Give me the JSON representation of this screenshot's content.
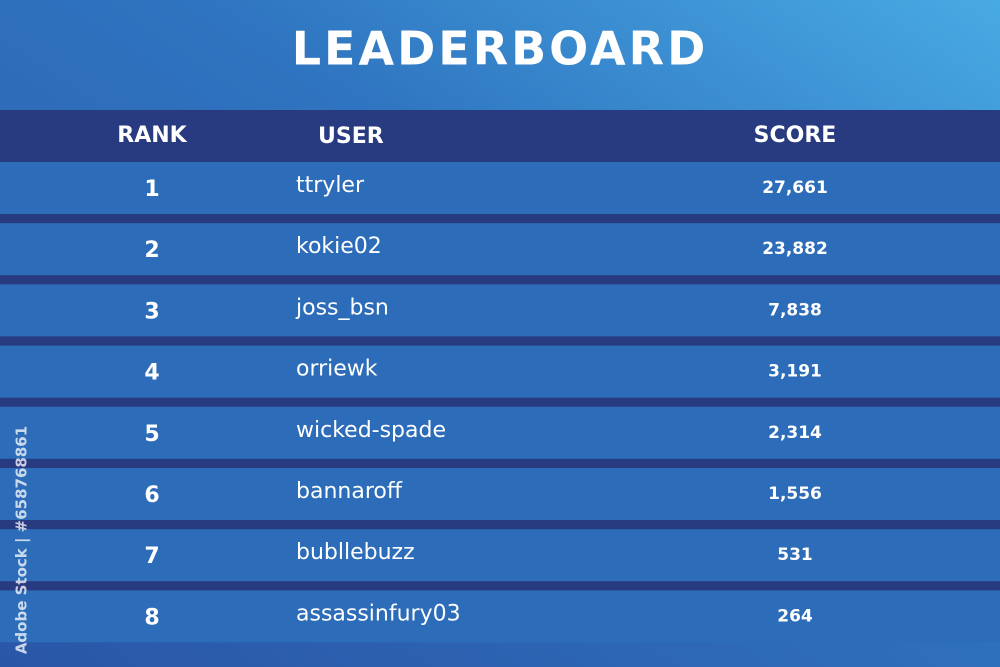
{
  "header": {
    "title": "LEADERBOARD"
  },
  "table": {
    "columns": [
      "RANK",
      "USER",
      "SCORE"
    ],
    "rows": [
      [
        "1",
        "ttryler",
        "27,661"
      ],
      [
        "2",
        "kokie02",
        "23,882"
      ],
      [
        "3",
        "joss_bsn",
        "7,838"
      ],
      [
        "4",
        "orriewk",
        "3,191"
      ],
      [
        "5",
        "wicked-spade",
        "2,314"
      ],
      [
        "6",
        "bannaroff",
        "1,556"
      ],
      [
        "7",
        "bubllebuzz",
        "531"
      ],
      [
        "8",
        "assassinfury03",
        "264"
      ]
    ]
  },
  "watermark": "Adobe Stock | #658768861"
}
